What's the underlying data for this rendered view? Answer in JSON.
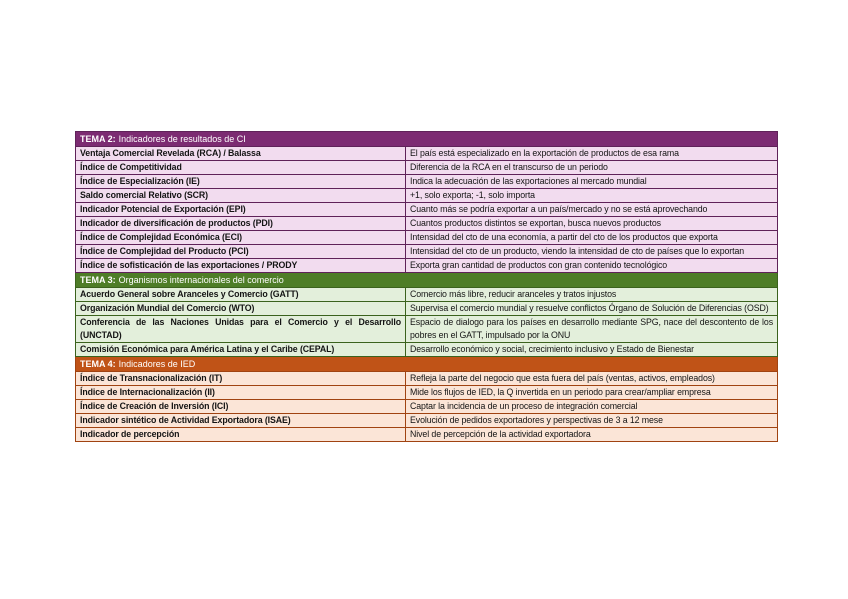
{
  "page": {
    "background": "#ffffff"
  },
  "table": {
    "columns": [
      "indicator",
      "description"
    ],
    "sections": [
      {
        "id": "tema2",
        "header_prefix": "TEMA 2:",
        "header_rest": "Indicadores de resultados de CI",
        "colors": {
          "header_bg": "#7C2B72",
          "header_text": "#FFFFFF",
          "row_bg": "#F2DCEF",
          "border": "#5F2259"
        },
        "rows": [
          {
            "term": "Ventaja Comercial Revelada (RCA) / Balassa",
            "desc": "El país está especializado en la exportación de productos de esa rama",
            "term_lines": 1,
            "desc_lines": 1
          },
          {
            "term": "Índice de Competitividad",
            "desc": "Diferencia de la RCA en el transcurso de un periodo",
            "term_lines": 1,
            "desc_lines": 1
          },
          {
            "term": "Índice de Especialización (IE)",
            "desc": "Indica la adecuación de las exportaciones al mercado mundial",
            "term_lines": 1,
            "desc_lines": 1
          },
          {
            "term": "Saldo comercial Relativo (SCR)",
            "desc": "+1, solo exporta; -1, solo importa",
            "term_lines": 1,
            "desc_lines": 1
          },
          {
            "term": "Indicador Potencial de Exportación (EPI)",
            "desc": "Cuanto más se podría exportar a un país/mercado y no se está aprovechando",
            "term_lines": 1,
            "desc_lines": 1
          },
          {
            "term": "Indicador de diversificación de productos (PDI)",
            "desc": "Cuantos productos distintos se exportan, busca nuevos productos",
            "term_lines": 1,
            "desc_lines": 1
          },
          {
            "term": "Índice de Complejidad Económica (ECI)",
            "desc": "Intensidad del cto de una economía, a partir del cto de los productos que exporta",
            "term_lines": 1,
            "desc_lines": 1
          },
          {
            "term": "Índice de Complejidad del Producto (PCI)",
            "desc": "Intensidad del cto de un producto, viendo la intensidad de cto de países que lo exportan",
            "term_lines": 1,
            "desc_lines": 2
          },
          {
            "term": "Índice de sofisticación de las exportaciones / PRODY",
            "desc": "Exporta gran cantidad de productos con gran contenido tecnológico",
            "term_lines": 1,
            "desc_lines": 1
          }
        ]
      },
      {
        "id": "tema3",
        "header_prefix": "TEMA 3:",
        "header_rest": "Organismos internacionales del comercio",
        "colors": {
          "header_bg": "#4E7D27",
          "header_text": "#FFFFFF",
          "row_bg": "#E3EFDB",
          "border": "#3B621D"
        },
        "rows": [
          {
            "term": "Acuerdo General sobre Aranceles y Comercio (GATT)",
            "desc": "Comercio más libre, reducir aranceles y tratos injustos",
            "term_lines": 1,
            "desc_lines": 1
          },
          {
            "term": "Organización Mundial del Comercio (WTO)",
            "desc": "Supervisa el comercio mundial y resuelve conflictos Órgano de Solución de Diferencias (OSD)",
            "term_lines": 1,
            "desc_lines": 2,
            "desc_justify": true
          },
          {
            "term": "Conferencia de las Naciones Unidas para el Comercio y el Desarrollo (UNCTAD)",
            "desc": "Espacio de dialogo para los países en desarrollo mediante SPG, nace del descontento de los pobres en el GATT, impulsado por la ONU",
            "term_lines": 2,
            "desc_lines": 2,
            "term_justify": true,
            "desc_justify": true
          },
          {
            "term": "Comisión Económica para América Latina y el Caribe (CEPAL)",
            "desc": "Desarrollo económico y social, crecimiento inclusivo y Estado de Bienestar",
            "term_lines": 1,
            "desc_lines": 1
          }
        ]
      },
      {
        "id": "tema4",
        "header_prefix": "TEMA 4:",
        "header_rest": "Indicadores de IED",
        "colors": {
          "header_bg": "#C05317",
          "header_text": "#FFFFFF",
          "row_bg": "#FBE5D7",
          "border": "#A04311"
        },
        "rows": [
          {
            "term": "Índice de Transnacionalización (IT)",
            "desc": "Refleja la parte del negocio que esta fuera del país (ventas, activos, empleados)",
            "term_lines": 1,
            "desc_lines": 1
          },
          {
            "term": "Índice de Internacionalización (II)",
            "desc": "Mide los flujos de IED, la Q invertida en un periodo para crear/ampliar empresa",
            "term_lines": 1,
            "desc_lines": 1
          },
          {
            "term": "Índice de Creación de Inversión (ICI)",
            "desc": "Captar la incidencia de un proceso de integración comercial",
            "term_lines": 1,
            "desc_lines": 1
          },
          {
            "term": "Indicador sintético de Actividad Exportadora (ISAE)",
            "desc": "Evolución de pedidos exportadores y perspectivas de 3 a 12 mese",
            "term_lines": 1,
            "desc_lines": 1
          },
          {
            "term": "Indicador de percepción",
            "desc": "Nivel de percepción de la actividad exportadora",
            "term_lines": 1,
            "desc_lines": 1
          }
        ]
      }
    ]
  }
}
